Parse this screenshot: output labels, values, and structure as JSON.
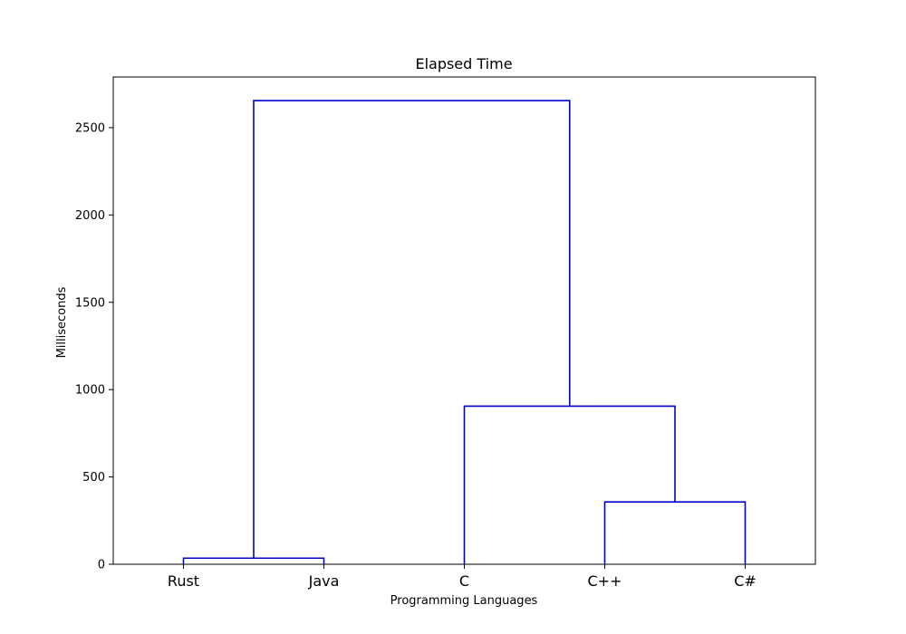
{
  "chart_data": {
    "type": "dendrogram",
    "title": "Elapsed Time",
    "xlabel": "Programming Languages",
    "ylabel": "Milliseconds",
    "ylim": [
      0,
      2790
    ],
    "yticks": [
      0,
      500,
      1000,
      1500,
      2000,
      2500
    ],
    "leaves": [
      "Rust",
      "Java",
      "C",
      "C++",
      "C#"
    ],
    "links": [
      {
        "left": "Rust",
        "right": "Java",
        "height": 35
      },
      {
        "left": "C++",
        "right": "C#",
        "height": 357
      },
      {
        "left": "C",
        "right": "C++ + C#",
        "height": 905
      },
      {
        "left": "Rust + Java",
        "right": "C + C++ + C#",
        "height": 2655
      }
    ],
    "line_color": "#0000cc",
    "grid": false,
    "legend": "none"
  }
}
